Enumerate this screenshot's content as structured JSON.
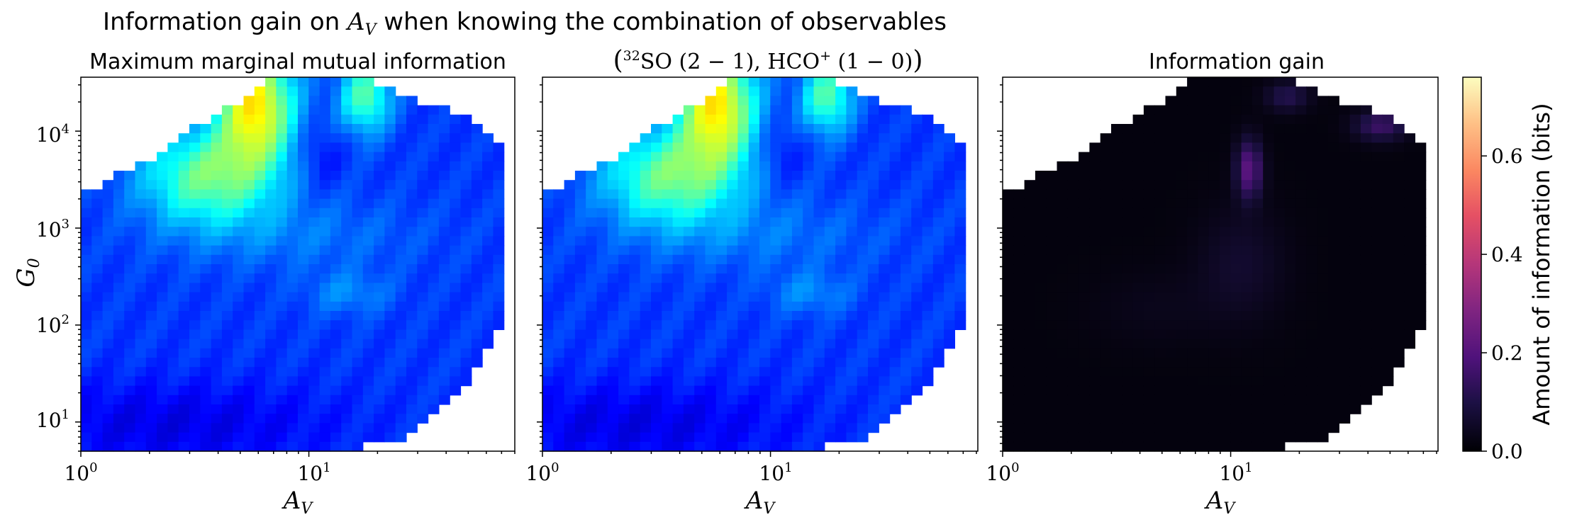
{
  "suptitle_prefix": "Information gain on ",
  "suptitle_var": "A",
  "suptitle_sub": "V",
  "suptitle_suffix": " when knowing the combination of observables",
  "chart_data": [
    {
      "type": "heatmap",
      "title": "Maximum marginal mutual information",
      "xlabel": "A_V",
      "ylabel": "G_0",
      "xscale": "log",
      "yscale": "log",
      "xlim": [
        1,
        80
      ],
      "ylim": [
        5,
        36000
      ],
      "xticks": [
        "10^0",
        "10^1"
      ],
      "yticks": [
        "10^1",
        "10^2",
        "10^3",
        "10^4"
      ],
      "colormap": "jet"
    },
    {
      "type": "heatmap",
      "title": "(32SO (2-1), HCO+ (1-0))",
      "xlabel": "A_V",
      "xscale": "log",
      "yscale": "log",
      "xlim": [
        1,
        80
      ],
      "ylim": [
        5,
        36000
      ],
      "xticks": [
        "10^0",
        "10^1"
      ],
      "colormap": "jet"
    },
    {
      "type": "heatmap",
      "title": "Information gain",
      "xlabel": "A_V",
      "xscale": "log",
      "yscale": "log",
      "xlim": [
        1,
        80
      ],
      "ylim": [
        5,
        36000
      ],
      "xticks": [
        "10^0",
        "10^1"
      ],
      "colormap": "magma",
      "colorbar": {
        "label": "Amount of information (bits)",
        "range": [
          0,
          0.76
        ],
        "ticks": [
          "0.0",
          "0.2",
          "0.4",
          "0.6"
        ]
      }
    }
  ]
}
